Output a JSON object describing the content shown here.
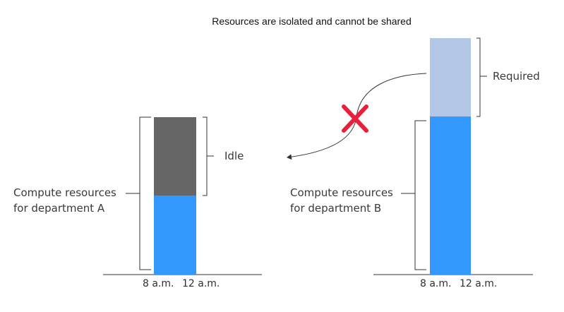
{
  "title": "Resources are isolated and cannot be shared",
  "department_a": {
    "label_line1": "Compute resources",
    "label_line2": "for department A",
    "idle_label": "Idle",
    "time_start": "8 a.m.",
    "time_end": "12 a.m."
  },
  "department_b": {
    "label_line1": "Compute resources",
    "label_line2": "for department B",
    "required_label": "Required",
    "time_start": "8 a.m.",
    "time_end": "12 a.m."
  },
  "colors": {
    "used": "#3399ff",
    "idle": "#666666",
    "required": "#b4c7e7",
    "cross": "#e8203c",
    "line": "#333333"
  }
}
